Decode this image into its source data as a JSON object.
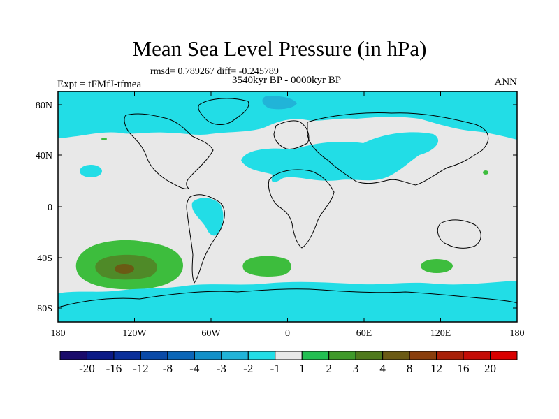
{
  "title": "Mean Sea Level Pressure (in hPa)",
  "stats_line": "rmsd= 0.789267 diff= -0.245789",
  "period": "3540kyr BP - 0000kyr BP",
  "experiment": "Expt = tFMfJ-tfmea",
  "season": "ANN",
  "axes": {
    "lat_labels": [
      "80N",
      "40N",
      "0",
      "40S",
      "80S"
    ],
    "lon_labels": [
      "180",
      "120W",
      "60W",
      "0",
      "60E",
      "120E",
      "180"
    ]
  },
  "colorbar": {
    "labels": [
      "-20",
      "-16",
      "-12",
      "-8",
      "-4",
      "-3",
      "-2",
      "-1",
      "1",
      "2",
      "3",
      "4",
      "8",
      "12",
      "16",
      "20"
    ],
    "colors": [
      "#1a0b6b",
      "#0b1a86",
      "#0a2f9a",
      "#0a4aa8",
      "#0a66b8",
      "#1190c8",
      "#21b4d8",
      "#22dde6",
      "#e8e8e8",
      "#23bf52",
      "#3f9a2a",
      "#4f7a1c",
      "#6b5a14",
      "#8a3e0c",
      "#a82008",
      "#c40c06",
      "#d90000"
    ]
  },
  "colors": {
    "background": "#e8e8e8",
    "neg_light": "#22dde6",
    "neg_mid": "#21b4d8",
    "pos_light": "#3dbd3d",
    "pos_mid": "#4f8a28",
    "pos_dark": "#6b5a14"
  }
}
